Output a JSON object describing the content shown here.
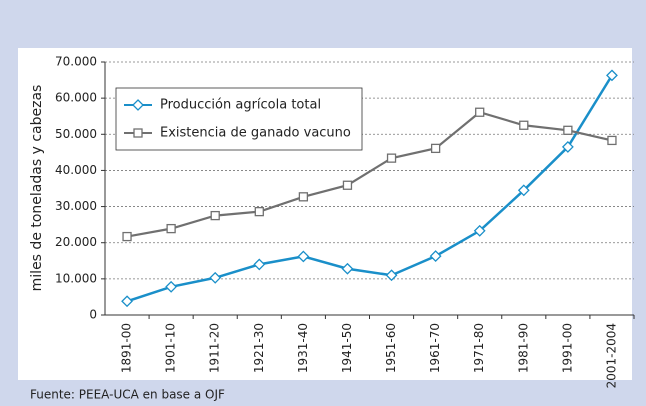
{
  "chart_data": {
    "type": "line",
    "y_label": "miles de toneladas y cabezas",
    "source": "Fuente: PEEA-UCA en base a OJF",
    "categories": [
      "1891-00",
      "1901-10",
      "1911-20",
      "1921-30",
      "1931-40",
      "1941-50",
      "1951-60",
      "1961-70",
      "1971-80",
      "1981-90",
      "1991-00",
      "2001-2004"
    ],
    "series": [
      {
        "name": "Producción agrícola total",
        "color": "#1a8fc9",
        "marker": "diamond",
        "values": [
          3800,
          7800,
          10300,
          14000,
          16200,
          12800,
          11000,
          16300,
          23300,
          34500,
          46500,
          66300
        ]
      },
      {
        "name": "Existencia de ganado vacuno",
        "color": "#707070",
        "marker": "square",
        "values": [
          21700,
          23900,
          27500,
          28600,
          32700,
          35900,
          43400,
          46100,
          56100,
          52500,
          51100,
          48300
        ]
      }
    ],
    "ylim": [
      0,
      70000
    ],
    "yticks": [
      0,
      {
        "value": 10000,
        "label": "10.000"
      },
      {
        "value": 20000,
        "label": "20.000"
      },
      {
        "value": 30000,
        "label": "30.000"
      },
      {
        "value": 40000,
        "label": "40.000"
      },
      {
        "value": 50000,
        "label": "50.000"
      },
      {
        "value": 60000,
        "label": "60.000"
      },
      {
        "value": 70000,
        "label": "70.000"
      }
    ],
    "grid": true,
    "legend": "upper left"
  }
}
